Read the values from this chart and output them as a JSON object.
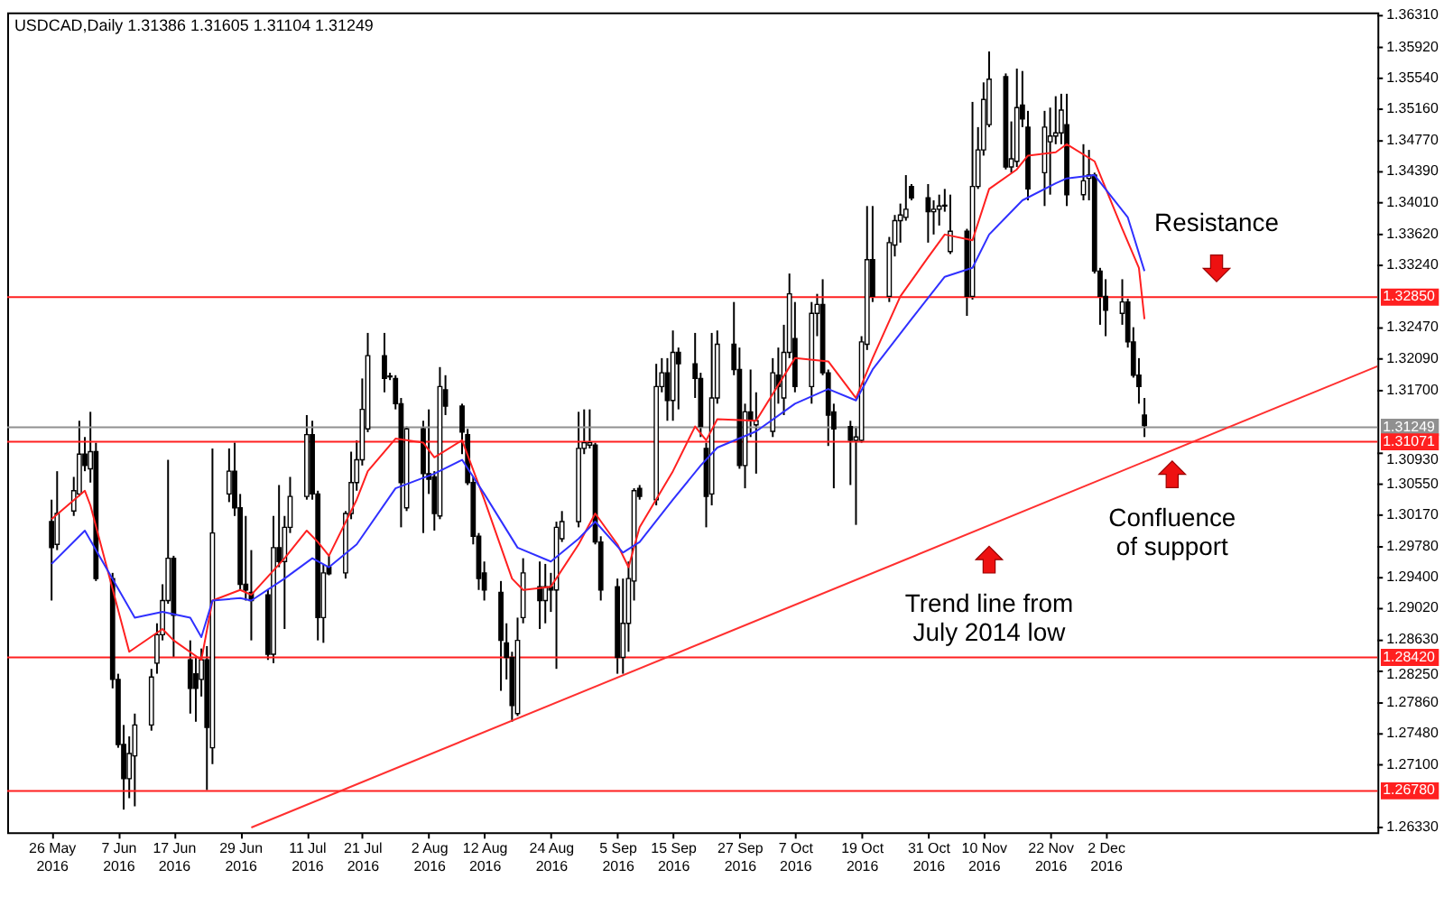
{
  "chart_data": {
    "type": "candlestick",
    "title": "USDCAD,Daily  1.31386 1.31605 1.31104 1.31249",
    "color": "#000000",
    "x": [
      "2016-05-26",
      "2016-05-27",
      "2016-05-30",
      "2016-05-31",
      "2016-06-01",
      "2016-06-02",
      "2016-06-03",
      "2016-06-06",
      "2016-06-07",
      "2016-06-08",
      "2016-06-09",
      "2016-06-10",
      "2016-06-13",
      "2016-06-14",
      "2016-06-15",
      "2016-06-16",
      "2016-06-17",
      "2016-06-20",
      "2016-06-21",
      "2016-06-22",
      "2016-06-23",
      "2016-06-24",
      "2016-06-27",
      "2016-06-28",
      "2016-06-29",
      "2016-06-30",
      "2016-07-01",
      "2016-07-04",
      "2016-07-05",
      "2016-07-06",
      "2016-07-07",
      "2016-07-08",
      "2016-07-11",
      "2016-07-12",
      "2016-07-13",
      "2016-07-14",
      "2016-07-15",
      "2016-07-18",
      "2016-07-19",
      "2016-07-20",
      "2016-07-21",
      "2016-07-22",
      "2016-07-25",
      "2016-07-26",
      "2016-07-27",
      "2016-07-28",
      "2016-07-29",
      "2016-08-01",
      "2016-08-02",
      "2016-08-03",
      "2016-08-04",
      "2016-08-05",
      "2016-08-08",
      "2016-08-09",
      "2016-08-10",
      "2016-08-11",
      "2016-08-12",
      "2016-08-15",
      "2016-08-16",
      "2016-08-17",
      "2016-08-18",
      "2016-08-19",
      "2016-08-22",
      "2016-08-23",
      "2016-08-24",
      "2016-08-25",
      "2016-08-26",
      "2016-08-29",
      "2016-08-30",
      "2016-08-31",
      "2016-09-01",
      "2016-09-02",
      "2016-09-05",
      "2016-09-06",
      "2016-09-07",
      "2016-09-08",
      "2016-09-09",
      "2016-09-12",
      "2016-09-13",
      "2016-09-14",
      "2016-09-15",
      "2016-09-16",
      "2016-09-19",
      "2016-09-20",
      "2016-09-21",
      "2016-09-22",
      "2016-09-23",
      "2016-09-26",
      "2016-09-27",
      "2016-09-28",
      "2016-09-29",
      "2016-09-30",
      "2016-10-03",
      "2016-10-04",
      "2016-10-05",
      "2016-10-06",
      "2016-10-07",
      "2016-10-10",
      "2016-10-11",
      "2016-10-12",
      "2016-10-13",
      "2016-10-14",
      "2016-10-17",
      "2016-10-18",
      "2016-10-19",
      "2016-10-20",
      "2016-10-21",
      "2016-10-24",
      "2016-10-25",
      "2016-10-26",
      "2016-10-27",
      "2016-10-28",
      "2016-10-31",
      "2016-11-01",
      "2016-11-02",
      "2016-11-03",
      "2016-11-04",
      "2016-11-07",
      "2016-11-08",
      "2016-11-09",
      "2016-11-10",
      "2016-11-11",
      "2016-11-14",
      "2016-11-15",
      "2016-11-16",
      "2016-11-17",
      "2016-11-18",
      "2016-11-21",
      "2016-11-22",
      "2016-11-23",
      "2016-11-24",
      "2016-11-25",
      "2016-11-28",
      "2016-11-29",
      "2016-11-30",
      "2016-12-01",
      "2016-12-02",
      "2016-12-05",
      "2016-12-06",
      "2016-12-07",
      "2016-12-08",
      "2016-12-09"
    ],
    "ohlc": [
      [
        1.3009,
        1.3036,
        1.2912,
        1.2977
      ],
      [
        1.2981,
        1.3071,
        1.2974,
        1.3019
      ],
      [
        1.3022,
        1.3064,
        1.3016,
        1.3047
      ],
      [
        1.3043,
        1.3133,
        1.304,
        1.3092
      ],
      [
        1.3092,
        1.3113,
        1.3071,
        1.3078
      ],
      [
        1.3074,
        1.3144,
        1.3057,
        1.3095
      ],
      [
        1.3095,
        1.3106,
        1.2936,
        1.2939
      ],
      [
        1.2939,
        1.2946,
        1.2804,
        1.2815
      ],
      [
        1.2815,
        1.2822,
        1.2731,
        1.2735
      ],
      [
        1.2735,
        1.2759,
        1.2655,
        1.2693
      ],
      [
        1.2693,
        1.2745,
        1.2669,
        1.2724
      ],
      [
        1.2721,
        1.2773,
        1.2659,
        1.2759
      ],
      [
        1.2759,
        1.2828,
        1.2752,
        1.2818
      ],
      [
        1.2835,
        1.2884,
        1.2822,
        1.287
      ],
      [
        1.287,
        1.2932,
        1.2863,
        1.2912
      ],
      [
        1.2912,
        1.3085,
        1.2908,
        1.2964
      ],
      [
        1.2964,
        1.2967,
        1.2842,
        1.2894
      ],
      [
        1.2839,
        1.2863,
        1.2773,
        1.2804
      ],
      [
        1.2822,
        1.2842,
        1.2763,
        1.2804
      ],
      [
        1.2815,
        1.2853,
        1.2794,
        1.2839
      ],
      [
        1.2839,
        1.2856,
        1.2679,
        1.2756
      ],
      [
        1.2731,
        1.3099,
        1.2711,
        1.2995
      ],
      [
        1.3043,
        1.3099,
        1.3033,
        1.3071
      ],
      [
        1.3071,
        1.3106,
        1.3016,
        1.3026
      ],
      [
        1.3026,
        1.3043,
        1.2925,
        1.2932
      ],
      [
        1.2932,
        1.3016,
        1.2912,
        1.2925
      ],
      [
        1.2922,
        1.2974,
        1.2863,
        1.2912
      ],
      [
        1.2919,
        1.2925,
        1.2839,
        1.2846
      ],
      [
        1.2846,
        1.3016,
        1.2835,
        1.2977
      ],
      [
        1.2977,
        1.3054,
        1.2953,
        1.296
      ],
      [
        1.296,
        1.3016,
        1.2877,
        1.3002
      ],
      [
        1.3002,
        1.3064,
        1.2995,
        1.304
      ],
      [
        1.304,
        1.314,
        1.3036,
        1.3116
      ],
      [
        1.3116,
        1.3133,
        1.3036,
        1.3043
      ],
      [
        1.3043,
        1.3047,
        1.2863,
        1.2891
      ],
      [
        1.2891,
        1.2957,
        1.286,
        1.2946
      ],
      [
        1.2953,
        1.2967,
        1.2943,
        1.2945
      ],
      [
        1.2946,
        1.3022,
        1.2939,
        1.3019
      ],
      [
        1.3019,
        1.3095,
        1.3012,
        1.3057
      ],
      [
        1.3057,
        1.3109,
        1.3047,
        1.3085
      ],
      [
        1.3085,
        1.3185,
        1.3078,
        1.3147
      ],
      [
        1.3123,
        1.3241,
        1.3119,
        1.3213
      ],
      [
        1.3213,
        1.3241,
        1.3168,
        1.3185
      ],
      [
        1.3188,
        1.3192,
        1.3183,
        1.3187
      ],
      [
        1.3185,
        1.3189,
        1.3147,
        1.3154
      ],
      [
        1.3154,
        1.3161,
        1.3002,
        1.3057
      ],
      [
        1.3026,
        1.3126,
        1.3022,
        1.3123
      ],
      [
        1.3123,
        1.3133,
        1.2995,
        1.3068
      ],
      [
        1.3068,
        1.3147,
        1.3043,
        1.3061
      ],
      [
        1.3064,
        1.3071,
        1.2998,
        1.3019
      ],
      [
        1.3016,
        1.3199,
        1.3012,
        1.3175
      ],
      [
        1.3171,
        1.3189,
        1.314,
        1.3151
      ],
      [
        1.3151,
        1.3154,
        1.3092,
        1.3119
      ],
      [
        1.3116,
        1.3123,
        1.3054,
        1.3057
      ],
      [
        1.3057,
        1.3064,
        1.2981,
        1.2991
      ],
      [
        1.2991,
        1.2995,
        1.2925,
        1.2939
      ],
      [
        1.2946,
        1.296,
        1.2912,
        1.2925
      ],
      [
        1.2922,
        1.2936,
        1.2801,
        1.2863
      ],
      [
        1.286,
        1.2884,
        1.2815,
        1.2842
      ],
      [
        1.2842,
        1.2849,
        1.2763,
        1.2783
      ],
      [
        1.2773,
        1.2891,
        1.277,
        1.2863
      ],
      [
        1.2891,
        1.2964,
        1.2884,
        1.2946
      ],
      [
        1.2929,
        1.296,
        1.2877,
        1.2912
      ],
      [
        1.2912,
        1.2957,
        1.2884,
        1.2929
      ],
      [
        1.2929,
        1.2946,
        1.2898,
        1.2925
      ],
      [
        1.2925,
        1.3009,
        1.2828,
        1.3002
      ],
      [
        1.2988,
        1.3022,
        1.2984,
        1.3009
      ],
      [
        1.3009,
        1.3144,
        1.3002,
        1.3099
      ],
      [
        1.3099,
        1.3147,
        1.3092,
        1.3106
      ],
      [
        1.3103,
        1.3147,
        1.3099,
        1.3106
      ],
      [
        1.3103,
        1.3106,
        1.2981,
        1.2984
      ],
      [
        1.2984,
        1.2991,
        1.2912,
        1.2925
      ],
      [
        1.2929,
        1.2939,
        1.2822,
        1.2842
      ],
      [
        1.2842,
        1.2939,
        1.2822,
        1.2884
      ],
      [
        1.2884,
        1.296,
        1.2849,
        1.2939
      ],
      [
        1.2936,
        1.305,
        1.2912,
        1.3047
      ],
      [
        1.305,
        1.3054,
        1.3036,
        1.304
      ],
      [
        1.3036,
        1.3203,
        1.3029,
        1.3175
      ],
      [
        1.3175,
        1.321,
        1.3168,
        1.3192
      ],
      [
        1.3192,
        1.321,
        1.3133,
        1.3158
      ],
      [
        1.3158,
        1.3244,
        1.3133,
        1.3217
      ],
      [
        1.3217,
        1.3223,
        1.3147,
        1.3203
      ],
      [
        1.3203,
        1.3241,
        1.3161,
        1.3185
      ],
      [
        1.3185,
        1.3192,
        1.3113,
        1.3126
      ],
      [
        1.3099,
        1.3106,
        1.3002,
        1.304
      ],
      [
        1.3043,
        1.3241,
        1.3029,
        1.3161
      ],
      [
        1.3161,
        1.3244,
        1.3154,
        1.3227
      ],
      [
        1.3227,
        1.3279,
        1.3189,
        1.3196
      ],
      [
        1.3196,
        1.3223,
        1.3074,
        1.3078
      ],
      [
        1.3078,
        1.3154,
        1.305,
        1.3144
      ],
      [
        1.3144,
        1.3196,
        1.3113,
        1.3133
      ],
      [
        1.3128,
        1.3168,
        1.3068,
        1.3133
      ],
      [
        1.312,
        1.321,
        1.3113,
        1.3192
      ],
      [
        1.3189,
        1.3223,
        1.3154,
        1.3175
      ],
      [
        1.3161,
        1.3251,
        1.314,
        1.3217
      ],
      [
        1.3217,
        1.3314,
        1.321,
        1.3289
      ],
      [
        1.3234,
        1.3279,
        1.3168,
        1.3175
      ],
      [
        1.3175,
        1.3279,
        1.3154,
        1.3265
      ],
      [
        1.3265,
        1.3289,
        1.3237,
        1.3276
      ],
      [
        1.3276,
        1.3307,
        1.3189,
        1.3192
      ],
      [
        1.3192,
        1.3196,
        1.3102,
        1.314
      ],
      [
        1.3144,
        1.3154,
        1.305,
        1.3123
      ],
      [
        1.3126,
        1.3133,
        1.3054,
        1.3109
      ],
      [
        1.3109,
        1.3126,
        1.3005,
        1.3113
      ],
      [
        1.3109,
        1.3237,
        1.3106,
        1.323
      ],
      [
        1.3227,
        1.3397,
        1.322,
        1.3331
      ],
      [
        1.3331,
        1.3397,
        1.3279,
        1.3286
      ],
      [
        1.3286,
        1.3359,
        1.3279,
        1.3352
      ],
      [
        1.3349,
        1.3386,
        1.3335,
        1.3379
      ],
      [
        1.3379,
        1.34,
        1.3352,
        1.3386
      ],
      [
        1.3383,
        1.3435,
        1.3379,
        1.3393
      ],
      [
        1.3421,
        1.3424,
        1.3404,
        1.3407
      ],
      [
        1.3407,
        1.3424,
        1.3352,
        1.339
      ],
      [
        1.339,
        1.3404,
        1.3362,
        1.3393
      ],
      [
        1.3393,
        1.3411,
        1.3373,
        1.3397
      ],
      [
        1.3397,
        1.3418,
        1.339,
        1.3398
      ],
      [
        1.3341,
        1.3411,
        1.3338,
        1.3366
      ],
      [
        1.3366,
        1.3369,
        1.3262,
        1.3286
      ],
      [
        1.3286,
        1.3525,
        1.3282,
        1.3421
      ],
      [
        1.3421,
        1.3494,
        1.3418,
        1.3466
      ],
      [
        1.3466,
        1.3549,
        1.3459,
        1.3528
      ],
      [
        1.3497,
        1.3587,
        1.3494,
        1.3553
      ],
      [
        1.3556,
        1.356,
        1.3442,
        1.3445
      ],
      [
        1.3445,
        1.3501,
        1.3438,
        1.3455
      ],
      [
        1.3452,
        1.3566,
        1.3445,
        1.3518
      ],
      [
        1.3521,
        1.3563,
        1.3494,
        1.3504
      ],
      [
        1.3494,
        1.3514,
        1.3404,
        1.3418
      ],
      [
        1.3438,
        1.3514,
        1.3397,
        1.3494
      ],
      [
        1.3476,
        1.3518,
        1.3411,
        1.3483
      ],
      [
        1.3483,
        1.3532,
        1.3473,
        1.3487
      ],
      [
        1.3487,
        1.3535,
        1.3473,
        1.3515
      ],
      [
        1.3497,
        1.3535,
        1.3397,
        1.3411
      ],
      [
        1.3411,
        1.3473,
        1.3404,
        1.3428
      ],
      [
        1.3431,
        1.3466,
        1.3404,
        1.3435
      ],
      [
        1.3435,
        1.3438,
        1.3314,
        1.3317
      ],
      [
        1.3317,
        1.3321,
        1.3251,
        1.3286
      ],
      [
        1.3286,
        1.3307,
        1.3237,
        1.3269
      ],
      [
        1.3265,
        1.3307,
        1.3251,
        1.3279
      ],
      [
        1.3279,
        1.3283,
        1.3223,
        1.323
      ],
      [
        1.323,
        1.3248,
        1.3186,
        1.3189
      ],
      [
        1.3189,
        1.321,
        1.3154,
        1.3175
      ],
      [
        1.314,
        1.3161,
        1.3113,
        1.3127
      ]
    ],
    "series": [
      {
        "type": "line",
        "color": "#ff2020",
        "x": [
          "2016-05-26",
          "2016-06-01",
          "2016-06-02",
          "2016-06-09",
          "2016-06-15",
          "2016-06-17",
          "2016-06-22",
          "2016-06-24",
          "2016-06-29",
          "2016-07-01",
          "2016-07-07",
          "2016-07-11",
          "2016-07-13",
          "2016-07-15",
          "2016-07-20",
          "2016-07-22",
          "2016-07-27",
          "2016-08-01",
          "2016-08-03",
          "2016-08-08",
          "2016-08-12",
          "2016-08-17",
          "2016-08-19",
          "2016-08-24",
          "2016-08-29",
          "2016-09-01",
          "2016-09-05",
          "2016-09-07",
          "2016-09-09",
          "2016-09-15",
          "2016-09-19",
          "2016-09-21",
          "2016-09-23",
          "2016-09-30",
          "2016-10-07",
          "2016-10-13",
          "2016-10-18",
          "2016-10-21",
          "2016-10-26",
          "2016-10-31",
          "2016-11-03",
          "2016-11-08",
          "2016-11-11",
          "2016-11-16",
          "2016-11-18",
          "2016-11-23",
          "2016-11-25",
          "2016-11-30",
          "2016-12-05",
          "2016-12-08",
          "2016-12-09"
        ],
        "values": [
          1.3012,
          1.3047,
          1.3029,
          1.2849,
          1.2877,
          1.2863,
          1.2839,
          1.2912,
          1.2925,
          1.2919,
          1.2964,
          1.2998,
          1.2984,
          1.2967,
          1.3036,
          1.3071,
          1.3111,
          1.3106,
          1.3088,
          1.3109,
          1.3036,
          1.2939,
          1.2925,
          1.2929,
          1.2981,
          1.3019,
          1.2981,
          1.2953,
          1.3002,
          1.3071,
          1.3126,
          1.3109,
          1.3135,
          1.3133,
          1.321,
          1.3206,
          1.3161,
          1.321,
          1.3286,
          1.3334,
          1.3362,
          1.3355,
          1.3418,
          1.3442,
          1.3459,
          1.3463,
          1.3473,
          1.3452,
          1.3369,
          1.3321,
          1.3258
        ]
      },
      {
        "type": "line",
        "color": "#3030ff",
        "x": [
          "2016-05-26",
          "2016-06-01",
          "2016-06-03",
          "2016-06-10",
          "2016-06-15",
          "2016-06-20",
          "2016-06-22",
          "2016-06-24",
          "2016-06-29",
          "2016-07-01",
          "2016-07-07",
          "2016-07-12",
          "2016-07-15",
          "2016-07-20",
          "2016-07-27",
          "2016-08-03",
          "2016-08-08",
          "2016-08-12",
          "2016-08-18",
          "2016-08-24",
          "2016-08-29",
          "2016-09-01",
          "2016-09-06",
          "2016-09-09",
          "2016-09-15",
          "2016-09-20",
          "2016-09-23",
          "2016-09-30",
          "2016-10-07",
          "2016-10-13",
          "2016-10-18",
          "2016-10-21",
          "2016-10-28",
          "2016-11-03",
          "2016-11-08",
          "2016-11-11",
          "2016-11-17",
          "2016-11-23",
          "2016-11-25",
          "2016-11-30",
          "2016-12-06",
          "2016-12-09"
        ],
        "values": [
          1.2957,
          1.2998,
          1.2974,
          1.2891,
          1.2898,
          1.2891,
          1.2867,
          1.2912,
          1.2915,
          1.2912,
          1.2939,
          1.2964,
          1.2953,
          1.2981,
          1.305,
          1.3068,
          1.3085,
          1.3043,
          1.2977,
          1.296,
          1.2988,
          1.3009,
          1.2971,
          1.2984,
          1.3036,
          1.3078,
          1.31,
          1.312,
          1.3154,
          1.3172,
          1.3158,
          1.3196,
          1.3258,
          1.331,
          1.3321,
          1.3362,
          1.3404,
          1.3425,
          1.3431,
          1.3435,
          1.3383,
          1.3317
        ]
      },
      {
        "type": "line",
        "color": "#ff3030",
        "x": [
          "2016-07-01",
          "2017-01-20"
        ],
        "values": [
          1.2633,
          1.32
        ]
      }
    ],
    "xlim": [
      "2016-05-18",
      "2017-01-20"
    ],
    "xticks": [
      {
        "value": "2016-05-26",
        "label": "26 May 2016"
      },
      {
        "value": "2016-06-07",
        "label": "7 Jun 2016"
      },
      {
        "value": "2016-06-17",
        "label": "17 Jun 2016"
      },
      {
        "value": "2016-06-29",
        "label": "29 Jun 2016"
      },
      {
        "value": "2016-07-11",
        "label": "11 Jul 2016"
      },
      {
        "value": "2016-07-21",
        "label": "21 Jul 2016"
      },
      {
        "value": "2016-08-02",
        "label": "2 Aug 2016"
      },
      {
        "value": "2016-08-12",
        "label": "12 Aug 2016"
      },
      {
        "value": "2016-08-24",
        "label": "24 Aug 2016"
      },
      {
        "value": "2016-09-05",
        "label": "5 Sep 2016"
      },
      {
        "value": "2016-09-15",
        "label": "15 Sep 2016"
      },
      {
        "value": "2016-09-27",
        "label": "27 Sep 2016"
      },
      {
        "value": "2016-10-07",
        "label": "7 Oct 2016"
      },
      {
        "value": "2016-10-19",
        "label": "19 Oct 2016"
      },
      {
        "value": "2016-10-31",
        "label": "31 Oct 2016"
      },
      {
        "value": "2016-11-10",
        "label": "10 Nov 2016"
      },
      {
        "value": "2016-11-22",
        "label": "22 Nov 2016"
      },
      {
        "value": "2016-12-02",
        "label": "2 Dec 2016"
      }
    ],
    "ylim": [
      1.2627,
      1.3635
    ],
    "yticks": [
      {
        "value": 1.3631,
        "label": "1.36310"
      },
      {
        "value": 1.3592,
        "label": "1.35920"
      },
      {
        "value": 1.3554,
        "label": "1.35540"
      },
      {
        "value": 1.3516,
        "label": "1.35160"
      },
      {
        "value": 1.3477,
        "label": "1.34770"
      },
      {
        "value": 1.3439,
        "label": "1.34390"
      },
      {
        "value": 1.3401,
        "label": "1.34010"
      },
      {
        "value": 1.3362,
        "label": "1.33620"
      },
      {
        "value": 1.3324,
        "label": "1.33240"
      },
      {
        "value": 1.3247,
        "label": "1.32470"
      },
      {
        "value": 1.3209,
        "label": "1.32090"
      },
      {
        "value": 1.317,
        "label": "1.31700"
      },
      {
        "value": 1.3093,
        "label": "1.30930"
      },
      {
        "value": 1.3055,
        "label": "1.30550"
      },
      {
        "value": 1.3017,
        "label": "1.30170"
      },
      {
        "value": 1.2978,
        "label": "1.29780"
      },
      {
        "value": 1.294,
        "label": "1.29400"
      },
      {
        "value": 1.2902,
        "label": "1.29020"
      },
      {
        "value": 1.2863,
        "label": "1.28630"
      },
      {
        "value": 1.2825,
        "label": "1.28250"
      },
      {
        "value": 1.2786,
        "label": "1.27860"
      },
      {
        "value": 1.2748,
        "label": "1.27480"
      },
      {
        "value": 1.271,
        "label": "1.27100"
      },
      {
        "value": 1.2633,
        "label": "1.26330"
      }
    ],
    "ref_lines": [
      {
        "axis": "y",
        "value": 1.3285,
        "label": "1.32850",
        "color": "#ff2020"
      },
      {
        "axis": "y",
        "value": 1.31249,
        "label": "1.31249",
        "color": "#909090"
      },
      {
        "axis": "y",
        "value": 1.31071,
        "label": "1.31071",
        "color": "#ff2020"
      },
      {
        "axis": "y",
        "value": 1.2842,
        "label": "1.28420",
        "color": "#ff2020"
      },
      {
        "axis": "y",
        "value": 1.2678,
        "label": "1.26780",
        "color": "#ff2020"
      }
    ],
    "annotations": [
      {
        "text": "Resistance",
        "x": "2016-12-22",
        "y": 1.3285
      },
      {
        "text": "Confluence\nof support",
        "x": "2016-12-14",
        "y": 1.3107
      },
      {
        "text": "Trend line from\nJuly 2014 low",
        "x": "2016-11-11",
        "y": 1.3002
      }
    ],
    "grid": false,
    "legend": false
  }
}
